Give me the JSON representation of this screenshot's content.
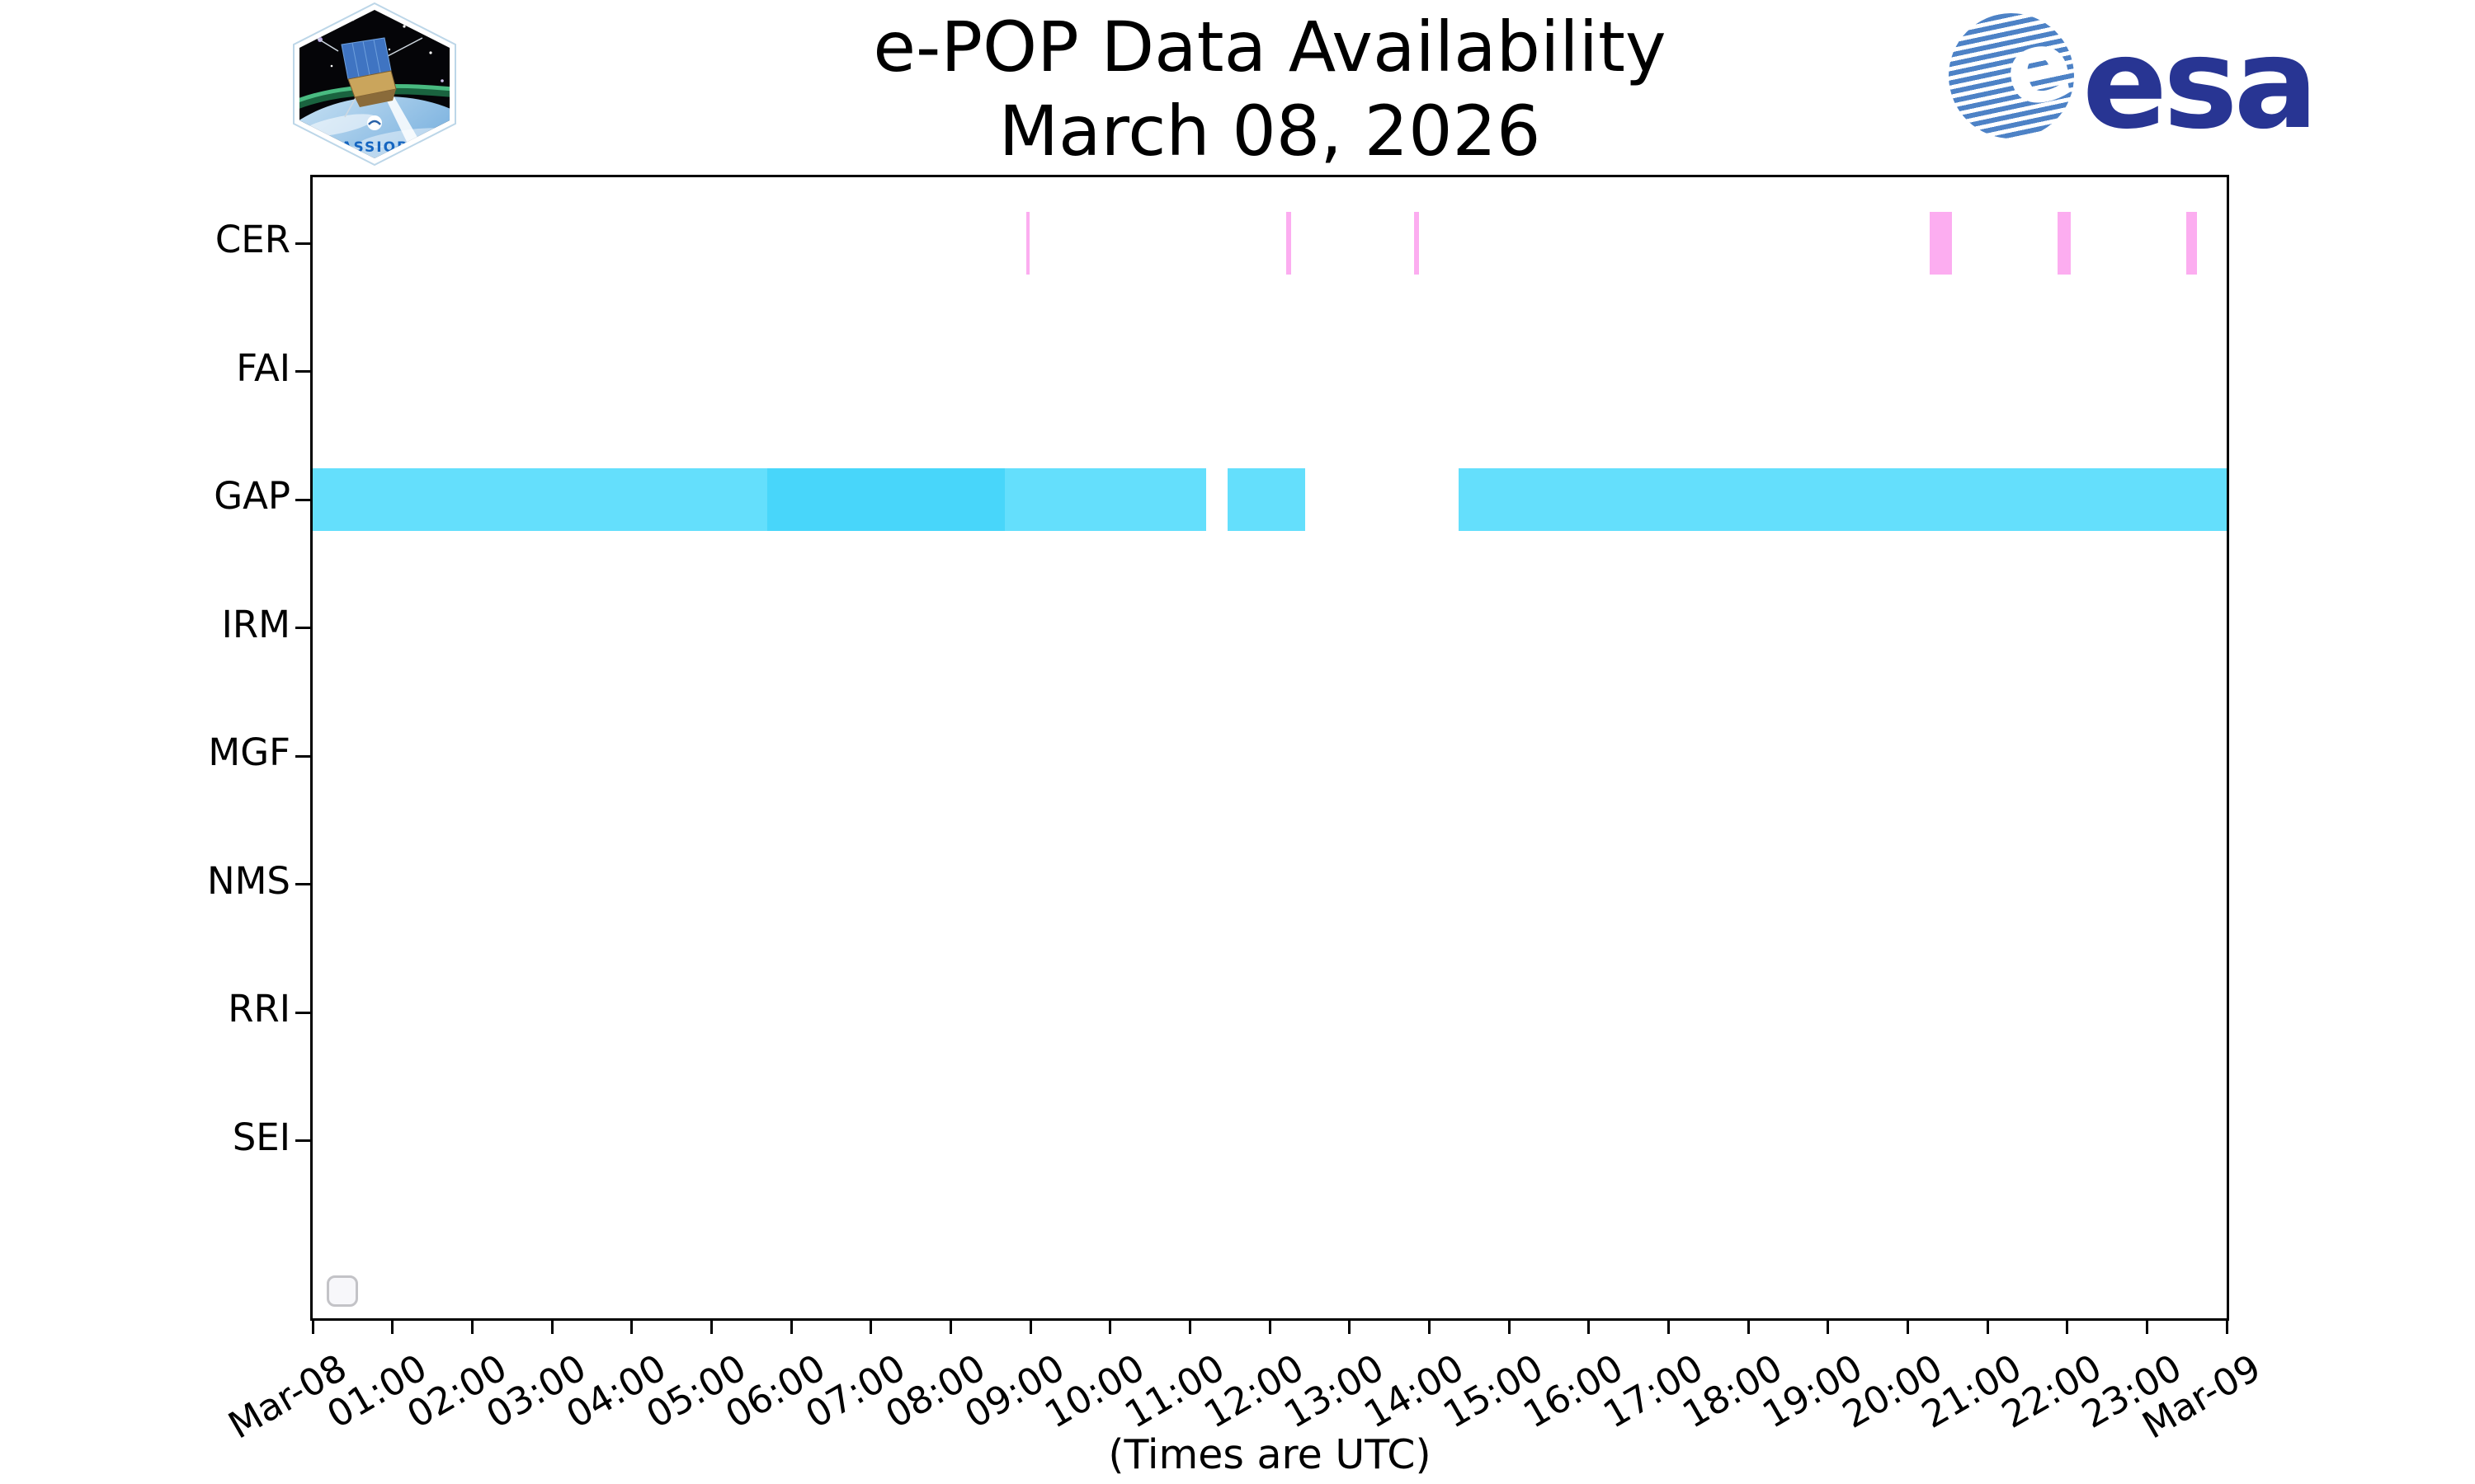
{
  "header": {
    "title_line1": "e-POP Data Availability",
    "title_line2": "March 08, 2026"
  },
  "logos": {
    "cassiope": {
      "label": "CASSIOPE"
    },
    "esa": {
      "globe_letter": "e",
      "label": "esa"
    }
  },
  "chart_data": {
    "type": "timeline",
    "title": "e-POP Data Availability",
    "subtitle": "March 08, 2026",
    "xlabel": "(Times are UTC)",
    "x_range_hours": [
      0,
      24
    ],
    "x_tick_labels": [
      "Mar-08",
      "01:00",
      "02:00",
      "03:00",
      "04:00",
      "05:00",
      "06:00",
      "07:00",
      "08:00",
      "09:00",
      "10:00",
      "11:00",
      "12:00",
      "13:00",
      "14:00",
      "15:00",
      "16:00",
      "17:00",
      "18:00",
      "19:00",
      "20:00",
      "21:00",
      "22:00",
      "23:00",
      "Mar-09"
    ],
    "rows": [
      "CER",
      "FAI",
      "GAP",
      "IRM",
      "MGF",
      "NMS",
      "RRI",
      "SEI"
    ],
    "colors": {
      "cer_event": "#fcadf0",
      "gap_light": "#64dffc",
      "gap_dark": "#48d6fa"
    },
    "bars": [
      {
        "row": "CER",
        "start": "08:57",
        "end": "08:59",
        "start_h": 8.95,
        "end_h": 8.99,
        "color": "cer_event"
      },
      {
        "row": "CER",
        "start": "12:13",
        "end": "12:16",
        "start_h": 12.21,
        "end_h": 12.27,
        "color": "cer_event"
      },
      {
        "row": "CER",
        "start": "13:49",
        "end": "13:52",
        "start_h": 13.81,
        "end_h": 13.87,
        "color": "cer_event"
      },
      {
        "row": "CER",
        "start": "20:17",
        "end": "20:34",
        "start_h": 20.28,
        "end_h": 20.56,
        "color": "cer_event"
      },
      {
        "row": "CER",
        "start": "21:53",
        "end": "22:03",
        "start_h": 21.88,
        "end_h": 22.05,
        "color": "cer_event"
      },
      {
        "row": "CER",
        "start": "23:29",
        "end": "23:38",
        "start_h": 23.49,
        "end_h": 23.63,
        "color": "cer_event"
      },
      {
        "row": "GAP",
        "start": "00:00",
        "end": "05:42",
        "start_h": 0.0,
        "end_h": 5.7,
        "color": "gap_light"
      },
      {
        "row": "GAP",
        "start": "05:42",
        "end": "08:41",
        "start_h": 5.7,
        "end_h": 8.68,
        "color": "gap_dark"
      },
      {
        "row": "GAP",
        "start": "08:41",
        "end": "11:12",
        "start_h": 8.68,
        "end_h": 11.2,
        "color": "gap_light"
      },
      {
        "row": "GAP",
        "start": "11:28",
        "end": "12:27",
        "start_h": 11.47,
        "end_h": 12.44,
        "color": "gap_light"
      },
      {
        "row": "GAP",
        "start": "14:22",
        "end": "24:00",
        "start_h": 14.37,
        "end_h": 24.0,
        "color": "gap_light"
      }
    ],
    "legend": {
      "visible": true,
      "entries": []
    }
  }
}
